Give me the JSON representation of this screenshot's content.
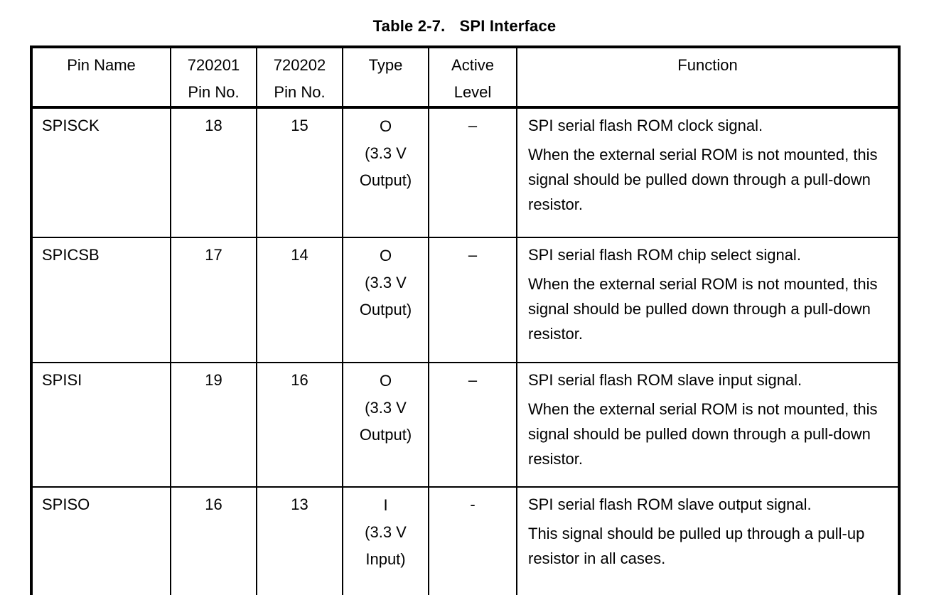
{
  "title": {
    "number": "Table 2-7.",
    "text": "SPI Interface"
  },
  "table": {
    "headers": [
      {
        "label": "Pin Name"
      },
      {
        "label": "720201\nPin No."
      },
      {
        "label": "720202\nPin No."
      },
      {
        "label": "Type"
      },
      {
        "label": "Active\nLevel"
      },
      {
        "label": "Function"
      }
    ],
    "rows": [
      {
        "pin_name": "SPISCK",
        "pin_no_720201": "18",
        "pin_no_720202": "15",
        "type": "O\n(3.3 V\nOutput)",
        "active_level": "–",
        "function_paragraphs": [
          "SPI serial flash ROM clock signal.",
          "When the external serial ROM is not mounted, this signal should be pulled down through a pull-down resistor."
        ]
      },
      {
        "pin_name": "SPICSB",
        "pin_no_720201": "17",
        "pin_no_720202": "14",
        "type": "O\n(3.3 V\nOutput)",
        "active_level": "–",
        "function_paragraphs": [
          "SPI serial flash ROM chip select signal.",
          "When the external serial ROM is not mounted, this signal should be pulled down through a pull-down resistor."
        ]
      },
      {
        "pin_name": "SPISI",
        "pin_no_720201": "19",
        "pin_no_720202": "16",
        "type": "O\n(3.3 V\nOutput)",
        "active_level": "–",
        "function_paragraphs": [
          "SPI serial flash ROM slave input signal.",
          "When the external serial ROM is not mounted, this signal should be pulled down through a pull-down resistor."
        ]
      },
      {
        "pin_name": "SPISO",
        "pin_no_720201": "16",
        "pin_no_720202": "13",
        "type": "I\n(3.3 V\nInput)",
        "active_level": "-",
        "function_paragraphs": [
          "SPI serial flash ROM slave output signal.",
          "This signal should be pulled up through a pull-up resistor in all cases."
        ]
      }
    ]
  },
  "colors": {
    "text": "#000000",
    "border": "#000000",
    "background": "#ffffff"
  }
}
